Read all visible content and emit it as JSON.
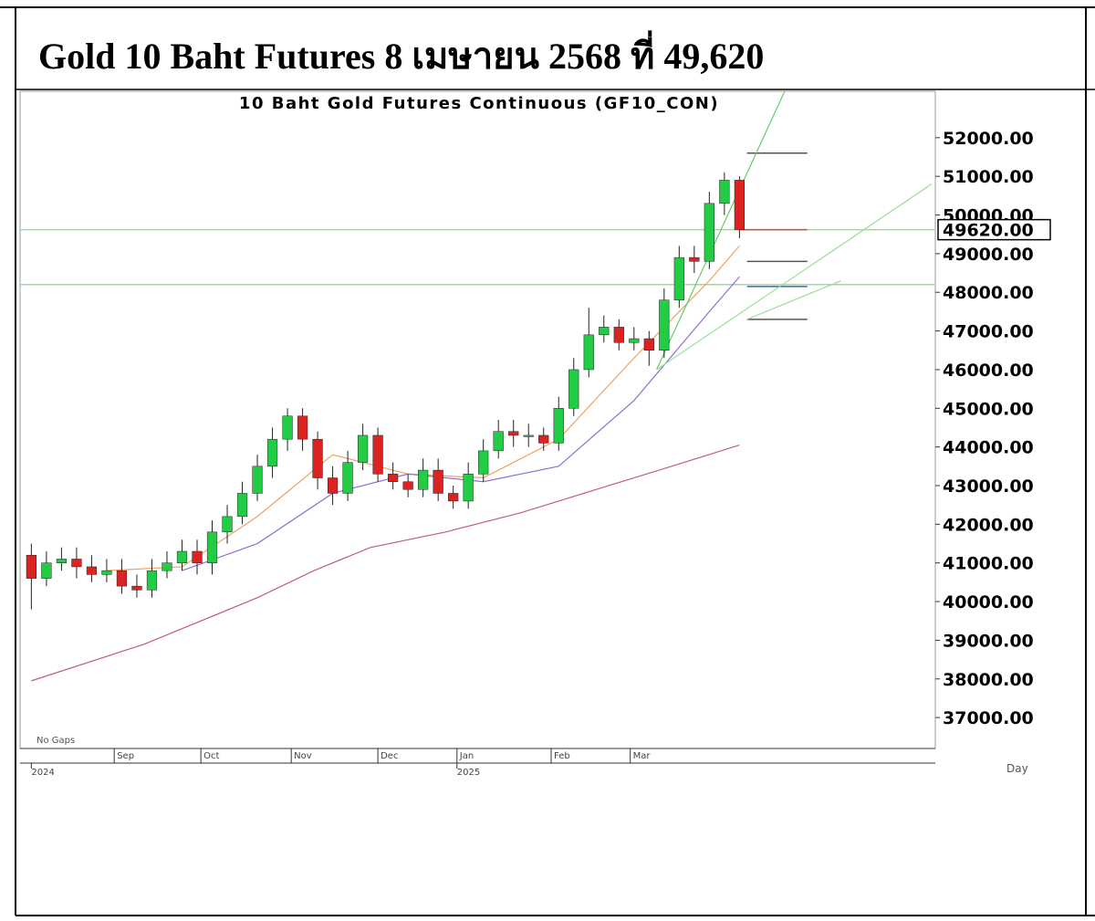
{
  "header": {
    "title": "Gold 10 Baht Futures 8 เมษายน 2568 ที่ 49,620"
  },
  "chart_data": {
    "type": "candlestick",
    "title": "10 Baht Gold Futures Continuous (GF10_CON)",
    "annotation": "No Gaps",
    "x_label": "Day",
    "xlim": [
      -3,
      240
    ],
    "ylim": [
      36200,
      53200
    ],
    "yticks": [
      {
        "value": 37000,
        "label": "37000.00"
      },
      {
        "value": 38000,
        "label": "38000.00"
      },
      {
        "value": 39000,
        "label": "39000.00"
      },
      {
        "value": 40000,
        "label": "40000.00"
      },
      {
        "value": 41000,
        "label": "41000.00"
      },
      {
        "value": 42000,
        "label": "42000.00"
      },
      {
        "value": 43000,
        "label": "43000.00"
      },
      {
        "value": 44000,
        "label": "44000.00"
      },
      {
        "value": 45000,
        "label": "45000.00"
      },
      {
        "value": 46000,
        "label": "46000.00"
      },
      {
        "value": 47000,
        "label": "47000.00"
      },
      {
        "value": 48000,
        "label": "48000.00"
      },
      {
        "value": 49000,
        "label": "49000.00"
      },
      {
        "value": 50000,
        "label": "50000.00"
      },
      {
        "value": 51000,
        "label": "51000.00"
      },
      {
        "value": 52000,
        "label": "52000.00"
      }
    ],
    "xticks": [
      {
        "value": 22,
        "label": "Sep"
      },
      {
        "value": 45,
        "label": "Oct"
      },
      {
        "value": 69,
        "label": "Nov"
      },
      {
        "value": 92,
        "label": "Dec"
      },
      {
        "value": 113,
        "label": "Jan"
      },
      {
        "value": 138,
        "label": "Feb"
      },
      {
        "value": 159,
        "label": "Mar"
      }
    ],
    "year_ticks": [
      {
        "value": 0,
        "label": "2024"
      },
      {
        "value": 113,
        "label": "2025"
      }
    ],
    "last_price": {
      "value": 49620,
      "label": "49620.00"
    },
    "up_color": "#22cc44",
    "down_color": "#dd2222",
    "x": [
      0,
      4,
      8,
      12,
      16,
      20,
      24,
      28,
      32,
      36,
      40,
      44,
      48,
      52,
      56,
      60,
      64,
      68,
      72,
      76,
      80,
      84,
      88,
      92,
      96,
      100,
      104,
      108,
      112,
      116,
      120,
      124,
      128,
      132,
      136,
      140,
      144,
      148,
      152,
      156,
      160,
      164,
      168,
      172,
      176,
      180,
      184,
      188
    ],
    "open": [
      41200,
      40600,
      41000,
      41100,
      40900,
      40700,
      40800,
      40400,
      40300,
      40800,
      41000,
      41300,
      41000,
      41800,
      42200,
      42800,
      43500,
      44200,
      44800,
      44200,
      43200,
      42800,
      43600,
      44300,
      43300,
      43100,
      42900,
      43400,
      42800,
      42600,
      43300,
      43900,
      44400,
      44300,
      44300,
      44100,
      45000,
      46000,
      46900,
      47100,
      46700,
      46800,
      46500,
      47800,
      48900,
      48800,
      50300,
      50900
    ],
    "high": [
      41500,
      41300,
      41400,
      41400,
      41200,
      41100,
      41100,
      40700,
      41100,
      41300,
      41600,
      41600,
      42100,
      42500,
      43100,
      43800,
      44500,
      45000,
      45000,
      44400,
      43500,
      43900,
      44600,
      44500,
      43600,
      43300,
      43700,
      43700,
      43000,
      43600,
      44200,
      44700,
      44700,
      44600,
      44500,
      45300,
      46300,
      47600,
      47400,
      47300,
      47100,
      47000,
      48100,
      49200,
      49200,
      50600,
      51100,
      51000
    ],
    "low": [
      39800,
      40400,
      40800,
      40600,
      40500,
      40500,
      40200,
      40100,
      40100,
      40600,
      40800,
      40700,
      40700,
      41500,
      42000,
      42600,
      43200,
      43900,
      43900,
      42900,
      42500,
      42600,
      43400,
      43100,
      42900,
      42700,
      42700,
      42600,
      42400,
      42400,
      43100,
      43700,
      44000,
      44000,
      43900,
      43900,
      44800,
      45800,
      46700,
      46500,
      46500,
      46100,
      46300,
      47600,
      48500,
      48600,
      50000,
      49400
    ],
    "close": [
      40600,
      41000,
      41100,
      40900,
      40700,
      40800,
      40400,
      40300,
      40800,
      41000,
      41300,
      41000,
      41800,
      42200,
      42800,
      43500,
      44200,
      44800,
      44200,
      43200,
      42800,
      43600,
      44300,
      43300,
      43100,
      42900,
      43400,
      42800,
      42600,
      43300,
      43900,
      44400,
      44300,
      44300,
      44100,
      45000,
      46000,
      46900,
      47100,
      46700,
      46800,
      46500,
      47800,
      48900,
      48800,
      50300,
      50900,
      49620
    ],
    "moving_averages": [
      {
        "color": "#f0a060",
        "x": [
          20,
          40,
          60,
          80,
          100,
          120,
          140,
          160,
          180,
          188
        ],
        "values": [
          40800,
          40900,
          42200,
          43800,
          43300,
          43200,
          44200,
          46300,
          48300,
          49200
        ]
      },
      {
        "color": "#9070d0",
        "x": [
          40,
          60,
          80,
          100,
          120,
          140,
          160,
          180,
          188
        ],
        "values": [
          40800,
          41500,
          42800,
          43300,
          43100,
          43500,
          45200,
          47500,
          48400
        ]
      },
      {
        "color": "#c06070",
        "x": [
          0,
          30,
          60,
          75,
          90,
          110,
          130,
          150,
          170,
          188
        ],
        "values": [
          37950,
          38900,
          40100,
          40800,
          41400,
          41800,
          42300,
          42900,
          43500,
          44050
        ]
      }
    ],
    "trendlines": [
      {
        "color": "#66cc66",
        "x": [
          166,
          200
        ],
        "values": [
          46000,
          53200
        ]
      },
      {
        "color": "#99dd99",
        "x": [
          166,
          239
        ],
        "values": [
          46000,
          50800
        ]
      },
      {
        "color": "#99dd99",
        "x": [
          190,
          215
        ],
        "values": [
          47300,
          48300
        ]
      }
    ],
    "hlines": [
      {
        "color": "#99dd99",
        "value": 49620,
        "x": [
          -3,
          240
        ]
      },
      {
        "color": "#99dd99",
        "value": 48200,
        "x": [
          -3,
          240
        ]
      },
      {
        "color": "#555555",
        "value": 51600,
        "x": [
          190,
          206
        ]
      },
      {
        "color": "#555555",
        "value": 48800,
        "x": [
          190,
          206
        ]
      },
      {
        "color": "#4466aa",
        "value": 48150,
        "x": [
          190,
          206
        ]
      },
      {
        "color": "#555555",
        "value": 47300,
        "x": [
          190,
          206
        ]
      },
      {
        "color": "#dd4444",
        "value": 49620,
        "x": [
          188,
          206
        ]
      }
    ]
  }
}
